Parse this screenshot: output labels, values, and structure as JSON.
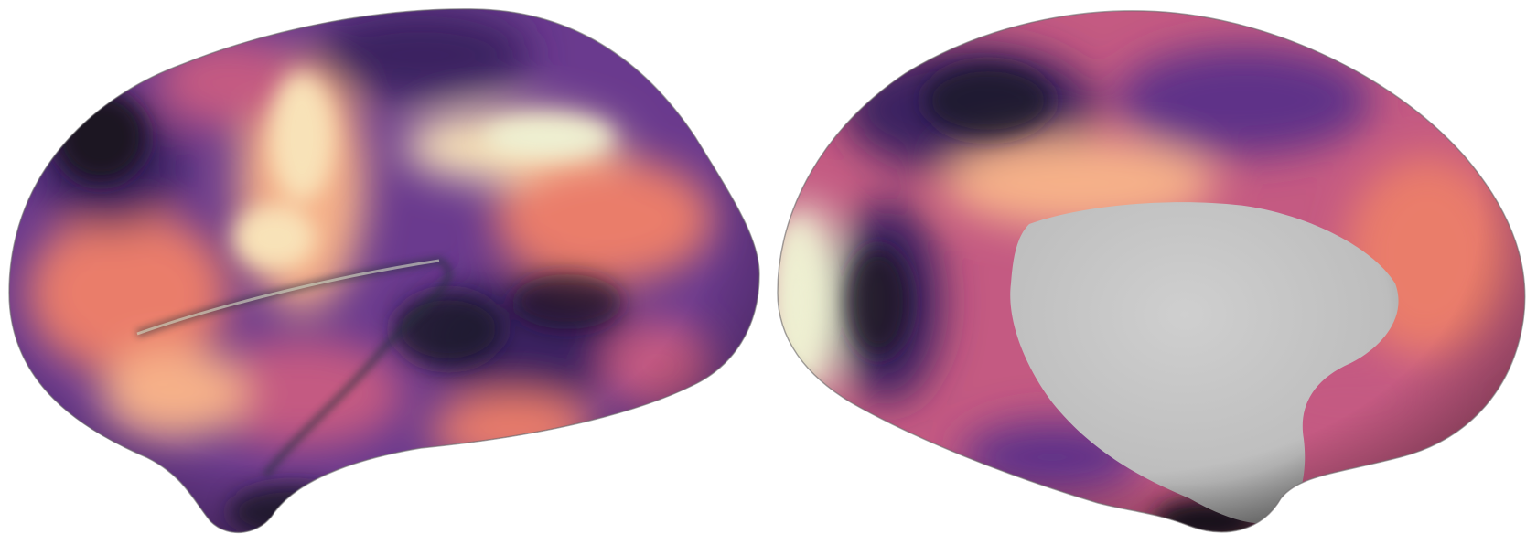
{
  "figure": {
    "colormap": "magma",
    "colormap_stops": [
      "#1c1524",
      "#3b2460",
      "#5e3288",
      "#8a4a9c",
      "#c45a82",
      "#ea7d6a",
      "#f6b189",
      "#f8e2b8",
      "#eef0d2"
    ],
    "background": "#ffffff",
    "medial_wall_color": "#c4c4c4"
  },
  "panels": [
    {
      "view": "lateral",
      "icon": "brain-lateral-icon"
    },
    {
      "view": "medial",
      "icon": "brain-medial-icon"
    }
  ]
}
